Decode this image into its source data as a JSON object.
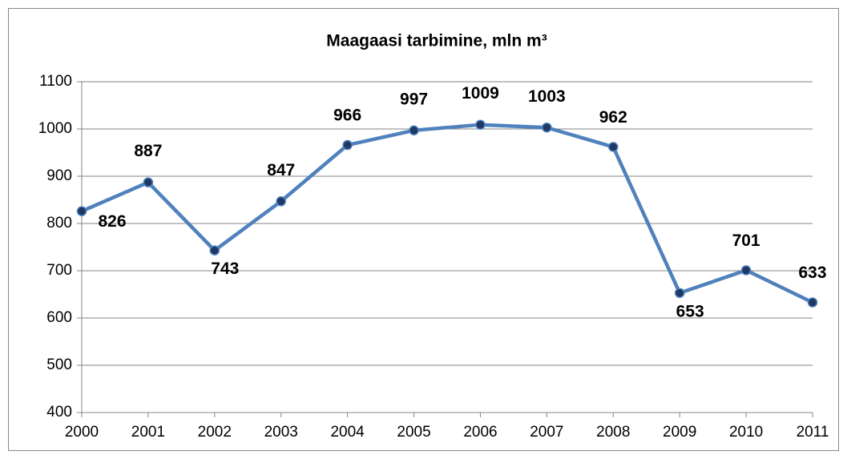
{
  "chart_data": {
    "type": "line",
    "title": "Maagaasi tarbimine, mln m³",
    "categories": [
      "2000",
      "2001",
      "2002",
      "2003",
      "2004",
      "2005",
      "2006",
      "2007",
      "2008",
      "2009",
      "2010",
      "2011"
    ],
    "series": [
      {
        "name": "Maagaasi tarbimine",
        "color": "#4f81bd",
        "values": [
          826,
          887,
          743,
          847,
          966,
          997,
          1009,
          1003,
          962,
          653,
          701,
          633
        ]
      }
    ],
    "ylim": [
      400,
      1100
    ],
    "yticks": [
      400,
      500,
      600,
      700,
      800,
      900,
      1000,
      1100
    ],
    "grid": true
  }
}
